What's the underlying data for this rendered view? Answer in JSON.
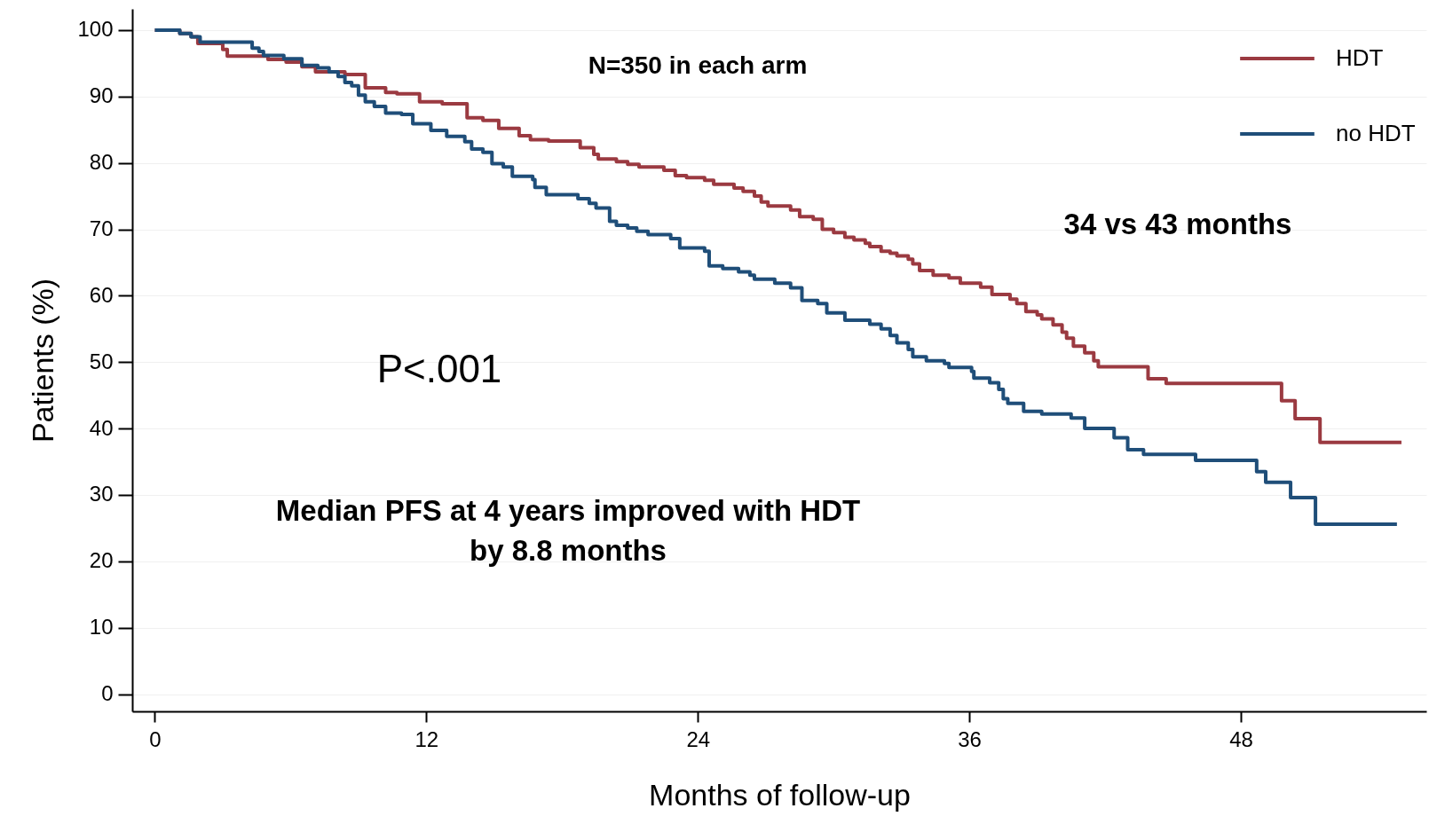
{
  "chart_data": {
    "type": "step",
    "xlabel": "Months of follow-up",
    "ylabel": "Patients (%)",
    "xlim": [
      -1,
      56.2
    ],
    "ylim": [
      -2.6,
      103.2
    ],
    "xticks": [
      0,
      12,
      24,
      36,
      48
    ],
    "yticks": [
      0,
      10,
      20,
      30,
      40,
      50,
      60,
      70,
      80,
      90,
      100
    ],
    "grid": "y",
    "legend": "top right",
    "annotations": [
      "N=350 in each arm",
      "34 vs 43 months",
      "P<.001",
      "Median PFS at 4 years improved with HDT\nby 8.8 months"
    ],
    "series": [
      {
        "name": "HDT",
        "color": "#9b3a41",
        "x": [
          0,
          1.1,
          1.6,
          1.9,
          3.0,
          3.2,
          5.0,
          5.8,
          6.5,
          7.1,
          8.4,
          9.3,
          10.2,
          10.7,
          11.7,
          12.7,
          13.8,
          14.5,
          15.2,
          16.1,
          16.6,
          17.4,
          18.8,
          19.4,
          19.6,
          20.4,
          20.9,
          21.4,
          22.5,
          23.0,
          23.5,
          24.3,
          24.7,
          25.6,
          26.0,
          26.5,
          26.8,
          27.1,
          28.1,
          28.5,
          29.1,
          29.5,
          30.0,
          30.5,
          30.9,
          31.4,
          31.6,
          32.1,
          32.5,
          32.8,
          33.3,
          33.5,
          33.8,
          34.4,
          35.1,
          35.6,
          36.5,
          37.0,
          37.8,
          38.1,
          38.5,
          39.0,
          39.2,
          39.7,
          40.1,
          40.3,
          40.6,
          41.1,
          41.5,
          41.7,
          43.9,
          44.7,
          49.8,
          50.4,
          51.5,
          55.1
        ],
        "values": [
          100,
          99.5,
          99,
          98,
          97.1,
          96.1,
          95.6,
          95.2,
          94.5,
          93.7,
          93.3,
          91.3,
          90.6,
          90.4,
          89.2,
          88.9,
          86.8,
          86.4,
          85.2,
          84.1,
          83.5,
          83.3,
          82.3,
          81.3,
          80.6,
          80.2,
          79.8,
          79.4,
          78.9,
          78.1,
          77.8,
          77.4,
          76.8,
          76.2,
          75.7,
          75.0,
          74.1,
          73.5,
          72.9,
          71.9,
          71.5,
          70.0,
          69.5,
          68.8,
          68.4,
          67.9,
          67.4,
          66.7,
          66.4,
          66.0,
          65.5,
          64.8,
          63.8,
          63.1,
          62.7,
          61.9,
          61.3,
          60.2,
          59.5,
          58.8,
          57.6,
          57.1,
          56.5,
          55.6,
          54.5,
          53.6,
          52.4,
          51.4,
          50.2,
          49.3,
          47.5,
          46.8,
          44.2,
          41.5,
          37.9,
          37.9
        ]
      },
      {
        "name": "no HDT",
        "color": "#1f4e79",
        "x": [
          0,
          1.1,
          1.6,
          2.0,
          4.3,
          4.6,
          4.8,
          5.7,
          6.5,
          7.2,
          7.7,
          8.1,
          8.4,
          8.7,
          9.0,
          9.3,
          9.7,
          10.2,
          10.9,
          11.4,
          12.2,
          12.9,
          13.7,
          14.0,
          14.5,
          14.9,
          15.4,
          15.8,
          16.7,
          16.8,
          17.3,
          18.7,
          19.2,
          19.5,
          20.1,
          20.4,
          20.9,
          21.3,
          21.8,
          22.8,
          23.2,
          24.3,
          24.5,
          25.1,
          25.8,
          26.3,
          26.5,
          27.4,
          28.1,
          28.6,
          29.3,
          29.7,
          30.5,
          31.6,
          32.1,
          32.5,
          32.8,
          33.3,
          33.5,
          34.1,
          34.9,
          35.1,
          36.1,
          36.2,
          36.9,
          37.3,
          37.5,
          37.7,
          38.4,
          39.2,
          40.5,
          41.1,
          42.4,
          43.0,
          43.7,
          46.0,
          48.7,
          49.1,
          50.2,
          51.3,
          54.9
        ],
        "values": [
          100,
          99.5,
          99,
          98.2,
          97.3,
          96.8,
          96.2,
          95.7,
          94.7,
          94.3,
          93.7,
          93.0,
          92.1,
          91.6,
          90.2,
          89.2,
          88.5,
          87.5,
          87.3,
          85.9,
          84.9,
          84.0,
          83.2,
          82.1,
          81.6,
          79.9,
          79.4,
          78.0,
          77.5,
          76.3,
          75.2,
          74.6,
          73.9,
          73.2,
          71.2,
          70.6,
          70.2,
          69.7,
          69.2,
          68.6,
          67.2,
          66.7,
          64.5,
          64.1,
          63.6,
          63.1,
          62.5,
          61.9,
          61.2,
          59.3,
          58.8,
          57.4,
          56.3,
          55.7,
          55.0,
          54.0,
          52.9,
          51.9,
          50.8,
          50.2,
          49.8,
          49.2,
          48.6,
          47.6,
          46.9,
          45.9,
          44.5,
          43.8,
          42.6,
          42.2,
          41.6,
          40.0,
          38.6,
          36.8,
          36.1,
          35.2,
          33.5,
          31.9,
          29.6,
          25.6,
          25.6
        ]
      }
    ]
  }
}
